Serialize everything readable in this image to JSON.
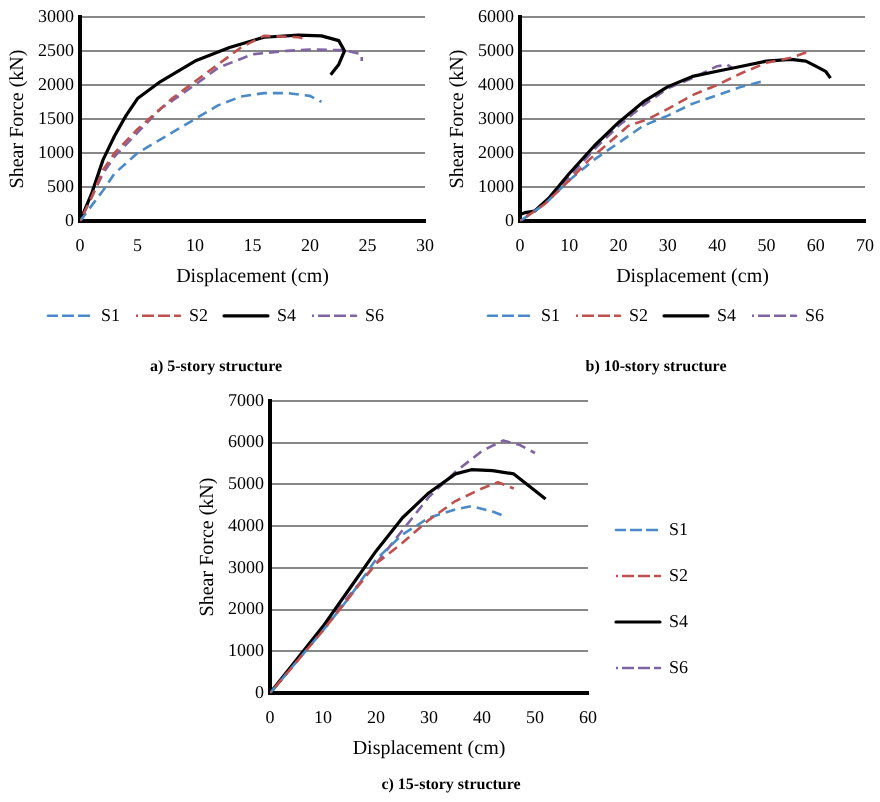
{
  "chart_data": [
    {
      "type": "line",
      "title": "a) 5-story structure",
      "xlabel": "Displacement (cm)",
      "ylabel": "Shear Force (kN)",
      "xlim": [
        0,
        30
      ],
      "xticks": [
        0,
        5,
        10,
        15,
        20,
        25,
        30
      ],
      "ylim": [
        0,
        3000
      ],
      "yticks": [
        0,
        500,
        1000,
        1500,
        2000,
        2500,
        3000
      ],
      "grid": "y",
      "legend": "bottom",
      "marker": "none",
      "series": [
        {
          "name": "S1",
          "color": "#4a8ac8",
          "line_style": "dashed",
          "x": [
            0,
            2,
            3,
            5,
            8,
            10,
            12,
            14,
            16,
            18,
            20,
            21
          ],
          "values": [
            0,
            450,
            700,
            1000,
            1300,
            1500,
            1700,
            1830,
            1880,
            1880,
            1840,
            1750
          ]
        },
        {
          "name": "S2",
          "color": "#c0504d",
          "line_style": "dashed",
          "x": [
            0,
            1,
            2,
            3,
            5,
            6,
            8,
            10,
            12,
            14,
            16,
            19,
            19.5
          ],
          "values": [
            0,
            350,
            750,
            1000,
            1350,
            1500,
            1800,
            2050,
            2300,
            2550,
            2720,
            2700,
            2680
          ]
        },
        {
          "name": "S4",
          "color": "#000000",
          "line_style": "solid",
          "x": [
            0,
            1,
            2,
            3,
            4,
            5,
            7,
            10,
            13,
            16,
            19,
            21,
            22.5,
            23,
            22.5,
            21.8
          ],
          "values": [
            0,
            400,
            900,
            1250,
            1550,
            1800,
            2050,
            2350,
            2550,
            2700,
            2730,
            2720,
            2650,
            2500,
            2300,
            2150
          ]
        },
        {
          "name": "S6",
          "color": "#8064a2",
          "line_style": "dashed",
          "x": [
            0,
            1,
            2,
            3,
            5,
            7,
            10,
            12,
            15,
            18,
            20,
            23,
            24.5,
            24.5
          ],
          "values": [
            0,
            350,
            700,
            950,
            1300,
            1650,
            2000,
            2250,
            2450,
            2500,
            2520,
            2510,
            2450,
            2350
          ]
        }
      ]
    },
    {
      "type": "line",
      "title": "b) 10-story structure",
      "xlabel": "Displacement (cm)",
      "ylabel": "Shear Force (kN)",
      "xlim": [
        0,
        70
      ],
      "xticks": [
        0,
        10,
        20,
        30,
        40,
        50,
        60,
        70
      ],
      "ylim": [
        0,
        6000
      ],
      "yticks": [
        0,
        1000,
        2000,
        3000,
        4000,
        5000,
        6000
      ],
      "grid": "y",
      "legend": "bottom",
      "marker": "none",
      "series": [
        {
          "name": "S1",
          "color": "#4a8ac8",
          "line_style": "dashed",
          "x": [
            0,
            5,
            10,
            15,
            20,
            25,
            30,
            35,
            40,
            45,
            49
          ],
          "values": [
            0,
            500,
            1200,
            1800,
            2300,
            2800,
            3100,
            3450,
            3700,
            3950,
            4100
          ]
        },
        {
          "name": "S2",
          "color": "#c0504d",
          "line_style": "dashed",
          "x": [
            0,
            5,
            10,
            14,
            18,
            22,
            26,
            30,
            35,
            40,
            45,
            50,
            55,
            58,
            59
          ],
          "values": [
            0,
            500,
            1200,
            1800,
            2300,
            2800,
            3000,
            3300,
            3700,
            4000,
            4350,
            4650,
            4800,
            4950,
            4850
          ]
        },
        {
          "name": "S4",
          "color": "#000000",
          "line_style": "solid",
          "x": [
            0,
            1,
            3,
            6,
            10,
            15,
            20,
            25,
            30,
            35,
            40,
            45,
            50,
            55,
            58,
            60,
            62,
            63
          ],
          "values": [
            200,
            250,
            300,
            700,
            1400,
            2200,
            2900,
            3500,
            3950,
            4250,
            4400,
            4550,
            4700,
            4750,
            4700,
            4550,
            4400,
            4200
          ]
        },
        {
          "name": "S6",
          "color": "#8064a2",
          "line_style": "dashed",
          "x": [
            0,
            5,
            10,
            15,
            20,
            25,
            30,
            35,
            40,
            42,
            43
          ],
          "values": [
            0,
            550,
            1300,
            2100,
            2800,
            3400,
            3900,
            4200,
            4550,
            4600,
            4500
          ]
        }
      ]
    },
    {
      "type": "line",
      "title": "c) 15-story structure",
      "xlabel": "Displacement (cm)",
      "ylabel": "Shear Force (kN)",
      "xlim": [
        0,
        60
      ],
      "xticks": [
        0,
        10,
        20,
        30,
        40,
        50,
        60
      ],
      "ylim": [
        0,
        7000
      ],
      "yticks": [
        0,
        1000,
        2000,
        3000,
        4000,
        5000,
        6000,
        7000
      ],
      "grid": "y",
      "legend": "right",
      "marker": "none",
      "series": [
        {
          "name": "S1",
          "color": "#4a8ac8",
          "line_style": "dashed",
          "x": [
            0,
            5,
            10,
            15,
            20,
            25,
            30,
            35,
            38,
            42,
            44
          ],
          "values": [
            0,
            750,
            1500,
            2300,
            3200,
            3800,
            4200,
            4400,
            4480,
            4350,
            4250
          ]
        },
        {
          "name": "S2",
          "color": "#c0504d",
          "line_style": "dashed",
          "x": [
            0,
            5,
            10,
            15,
            20,
            25,
            30,
            35,
            40,
            43,
            46
          ],
          "values": [
            0,
            750,
            1500,
            2300,
            3100,
            3600,
            4150,
            4600,
            4900,
            5050,
            4900
          ]
        },
        {
          "name": "S4",
          "color": "#000000",
          "line_style": "solid",
          "x": [
            0,
            5,
            10,
            15,
            20,
            25,
            30,
            35,
            38,
            42,
            46,
            49,
            52
          ],
          "values": [
            0,
            800,
            1600,
            2500,
            3400,
            4200,
            4800,
            5250,
            5350,
            5330,
            5250,
            4950,
            4650
          ]
        },
        {
          "name": "S6",
          "color": "#8064a2",
          "line_style": "dashed",
          "x": [
            0,
            5,
            10,
            15,
            20,
            25,
            30,
            35,
            40,
            44,
            47,
            50
          ],
          "values": [
            0,
            750,
            1550,
            2350,
            3100,
            3900,
            4700,
            5300,
            5800,
            6050,
            5950,
            5750
          ]
        }
      ]
    }
  ]
}
